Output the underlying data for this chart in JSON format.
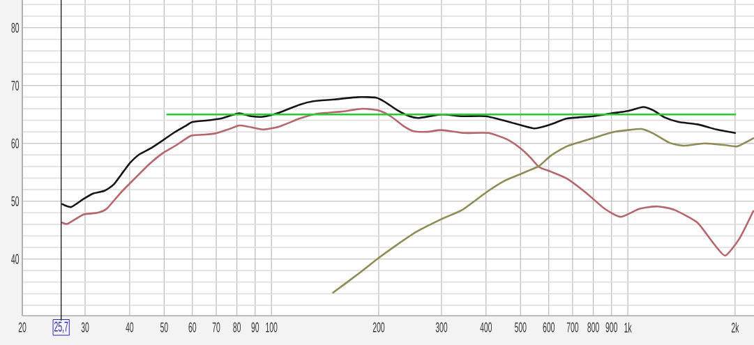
{
  "chart_data": {
    "type": "line",
    "xlim": [
      20,
      2260
    ],
    "ylim": [
      30.2,
      84.8
    ],
    "log": "x",
    "grid": true,
    "xticks": [
      20,
      30,
      40,
      50,
      60,
      70,
      80,
      90,
      100,
      200,
      300,
      400,
      500,
      600,
      700,
      800,
      900,
      {
        "value": 1000,
        "label": "1k"
      },
      {
        "value": 2000,
        "label": "2k"
      }
    ],
    "yticks": [
      {
        "value": 32,
        "label": null
      },
      {
        "value": 34,
        "label": null
      },
      {
        "value": 36,
        "label": null
      },
      {
        "value": 38,
        "label": null
      },
      40,
      {
        "value": 42,
        "label": null
      },
      {
        "value": 44,
        "label": null
      },
      {
        "value": 46,
        "label": null
      },
      {
        "value": 48,
        "label": null
      },
      50,
      {
        "value": 52,
        "label": null
      },
      {
        "value": 54,
        "label": null
      },
      {
        "value": 56,
        "label": null
      },
      {
        "value": 58,
        "label": null
      },
      60,
      {
        "value": 62,
        "label": null
      },
      {
        "value": 64,
        "label": null
      },
      {
        "value": 66,
        "label": null
      },
      {
        "value": 68,
        "label": null
      },
      70,
      {
        "value": 72,
        "label": null
      },
      {
        "value": 74,
        "label": null
      },
      {
        "value": 76,
        "label": null
      },
      {
        "value": 78,
        "label": null
      },
      80,
      {
        "value": 82,
        "label": null
      },
      {
        "value": 84,
        "label": null
      }
    ],
    "ref_lines": [
      {
        "axis": "x",
        "value": 25.7,
        "label": "25,7",
        "color": "#000000"
      }
    ],
    "series": [
      {
        "color": "#151515",
        "x": [
          25.9,
          27.4,
          29.7,
          31.5,
          34,
          36.1,
          38.4,
          40.2,
          42.6,
          46,
          49.5,
          53.4,
          57.7,
          60,
          66.9,
          72.2,
          77.6,
          81.3,
          87.7,
          94.6,
          105,
          120,
          131,
          150,
          175,
          197,
          209,
          226,
          244,
          259,
          300,
          343,
          400,
          465,
          545,
          609,
          675,
          798,
          901,
          1000,
          1104,
          1180,
          1268,
          1388,
          1568,
          1772,
          2000
        ],
        "values": [
          49.5,
          49.0,
          50.4,
          51.3,
          51.8,
          52.9,
          55.1,
          56.7,
          58.1,
          59.2,
          60.5,
          61.9,
          63.1,
          63.7,
          64.0,
          64.3,
          64.9,
          65.2,
          64.7,
          64.6,
          65.3,
          66.7,
          67.3,
          67.6,
          68.0,
          67.9,
          67.1,
          65.7,
          64.7,
          64.4,
          65.0,
          64.7,
          64.7,
          63.7,
          62.6,
          63.3,
          64.3,
          64.7,
          65.2,
          65.6,
          66.3,
          65.7,
          64.5,
          63.7,
          63.3,
          62.4,
          61.8
        ]
      },
      {
        "color": "#b5666a",
        "x": [
          25.9,
          26.8,
          29.7,
          32.5,
          34.5,
          37.8,
          41.3,
          45.2,
          49.5,
          54.1,
          59.3,
          64,
          69.4,
          75.5,
          81.3,
          86,
          94.6,
          105,
          120,
          133,
          157,
          180,
          200,
          216,
          236,
          251,
          274,
          300,
          348,
          406,
          458,
          501,
          532,
          564,
          609,
          675,
          762,
          861,
          955,
          1079,
          1213,
          1351,
          1568,
          1740,
          1877,
          2055,
          2250
        ],
        "values": [
          46.3,
          46.1,
          47.7,
          48.0,
          48.7,
          51.5,
          53.9,
          56.3,
          58.3,
          59.7,
          61.3,
          61.5,
          61.7,
          62.4,
          63.1,
          62.9,
          62.4,
          62.9,
          64.3,
          65.1,
          65.5,
          66.0,
          65.7,
          64.7,
          62.9,
          62.1,
          62.0,
          62.3,
          61.8,
          61.8,
          60.7,
          59.1,
          57.6,
          55.9,
          55.1,
          53.9,
          51.5,
          48.7,
          47.3,
          48.7,
          49.1,
          48.5,
          46.3,
          42.7,
          40.6,
          43.5,
          48.3
        ]
      },
      {
        "color": "#8f8b55",
        "x": [
          149,
          175,
          200,
          223,
          255,
          300,
          343,
          400,
          450,
          500,
          532,
          564,
          609,
          675,
          798,
          901,
          1000,
          1093,
          1180,
          1309,
          1432,
          1641,
          1877,
          2028,
          2250
        ],
        "values": [
          34.2,
          37.4,
          40.2,
          42.3,
          44.7,
          46.9,
          48.5,
          51.5,
          53.5,
          54.7,
          55.4,
          56.1,
          57.9,
          59.5,
          60.9,
          61.9,
          62.3,
          62.5,
          61.7,
          60.1,
          59.6,
          60.0,
          59.7,
          59.5,
          60.9
        ]
      },
      {
        "color": "#22cc33",
        "x": [
          51,
          2000
        ],
        "values": [
          65,
          65
        ]
      }
    ]
  }
}
